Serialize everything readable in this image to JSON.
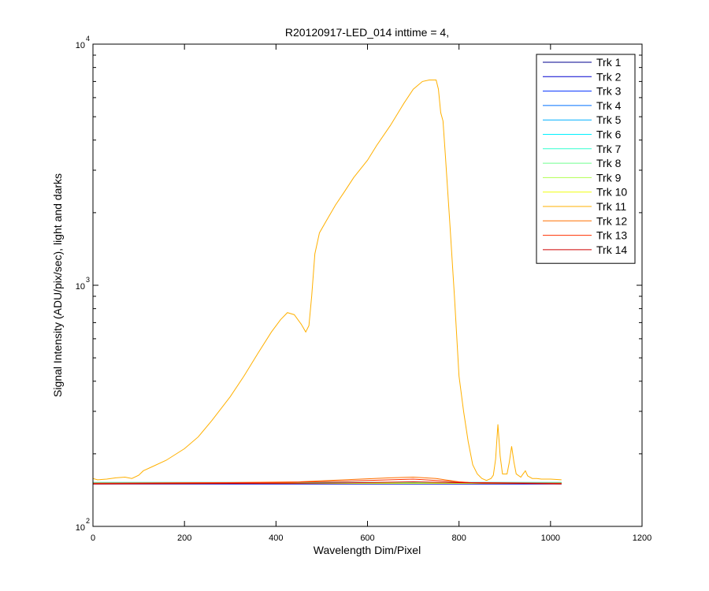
{
  "chart_data": {
    "type": "line",
    "title": "R20120917-LED_014 inttime = 4,",
    "xlabel": "Wavelength Dim/Pixel",
    "ylabel": "Signal Intensity (ADU/pix/sec), light and darks",
    "xlim": [
      0,
      1200
    ],
    "ylim": [
      100,
      10000
    ],
    "yscale": "log",
    "grid": false,
    "legend_position": "top-right",
    "x_ticks": [
      "0",
      "200",
      "400",
      "600",
      "800",
      "1000",
      "1200"
    ],
    "y_ticks": [
      {
        "value": 100,
        "base": "10",
        "exp": "2"
      },
      {
        "value": 1000,
        "base": "10",
        "exp": "3"
      },
      {
        "value": 10000,
        "base": "10",
        "exp": "4"
      }
    ],
    "series": [
      {
        "name": "Trk 1",
        "color": "#00008f",
        "points": [
          [
            0,
            150
          ],
          [
            1024,
            150
          ]
        ]
      },
      {
        "name": "Trk 2",
        "color": "#0000cf",
        "points": [
          [
            0,
            150
          ],
          [
            1024,
            150
          ]
        ]
      },
      {
        "name": "Trk 3",
        "color": "#0030ff",
        "points": [
          [
            0,
            151
          ],
          [
            1024,
            151
          ]
        ]
      },
      {
        "name": "Trk 4",
        "color": "#0070ff",
        "points": [
          [
            0,
            151
          ],
          [
            1024,
            151
          ]
        ]
      },
      {
        "name": "Trk 5",
        "color": "#00b0ff",
        "points": [
          [
            0,
            152
          ],
          [
            1024,
            152
          ]
        ]
      },
      {
        "name": "Trk 6",
        "color": "#00f0ff",
        "points": [
          [
            0,
            152
          ],
          [
            1024,
            152
          ]
        ]
      },
      {
        "name": "Trk 7",
        "color": "#30ffcf",
        "points": [
          [
            0,
            152
          ],
          [
            1024,
            152
          ]
        ]
      },
      {
        "name": "Trk 8",
        "color": "#70ff8f",
        "points": [
          [
            0,
            151
          ],
          [
            1024,
            151
          ]
        ]
      },
      {
        "name": "Trk 9",
        "color": "#b0ff4f",
        "points": [
          [
            0,
            151
          ],
          [
            1024,
            151
          ]
        ]
      },
      {
        "name": "Trk 10",
        "color": "#f0ff0f",
        "points": [
          [
            0,
            151
          ],
          [
            1024,
            151
          ]
        ]
      },
      {
        "name": "Trk 11",
        "color": "#ffb000",
        "points": [
          [
            0,
            158
          ],
          [
            10,
            156
          ],
          [
            30,
            157
          ],
          [
            50,
            159
          ],
          [
            70,
            160
          ],
          [
            85,
            158
          ],
          [
            100,
            163
          ],
          [
            110,
            170
          ],
          [
            130,
            177
          ],
          [
            160,
            188
          ],
          [
            200,
            210
          ],
          [
            230,
            235
          ],
          [
            260,
            275
          ],
          [
            300,
            345
          ],
          [
            330,
            420
          ],
          [
            360,
            520
          ],
          [
            390,
            640
          ],
          [
            410,
            720
          ],
          [
            425,
            770
          ],
          [
            440,
            755
          ],
          [
            455,
            690
          ],
          [
            465,
            640
          ],
          [
            472,
            680
          ],
          [
            478,
            900
          ],
          [
            485,
            1350
          ],
          [
            495,
            1650
          ],
          [
            510,
            1850
          ],
          [
            530,
            2150
          ],
          [
            550,
            2450
          ],
          [
            570,
            2800
          ],
          [
            600,
            3300
          ],
          [
            620,
            3800
          ],
          [
            650,
            4600
          ],
          [
            680,
            5700
          ],
          [
            700,
            6500
          ],
          [
            720,
            7000
          ],
          [
            735,
            7100
          ],
          [
            750,
            7100
          ],
          [
            755,
            6500
          ],
          [
            760,
            5200
          ],
          [
            765,
            4800
          ],
          [
            770,
            3500
          ],
          [
            780,
            1800
          ],
          [
            790,
            900
          ],
          [
            800,
            420
          ],
          [
            810,
            300
          ],
          [
            820,
            225
          ],
          [
            830,
            180
          ],
          [
            840,
            165
          ],
          [
            850,
            158
          ],
          [
            860,
            155
          ],
          [
            870,
            158
          ],
          [
            875,
            163
          ],
          [
            880,
            190
          ],
          [
            885,
            265
          ],
          [
            890,
            195
          ],
          [
            895,
            165
          ],
          [
            905,
            165
          ],
          [
            910,
            185
          ],
          [
            915,
            215
          ],
          [
            920,
            185
          ],
          [
            925,
            165
          ],
          [
            935,
            160
          ],
          [
            940,
            165
          ],
          [
            945,
            170
          ],
          [
            950,
            162
          ],
          [
            960,
            158
          ],
          [
            970,
            158
          ],
          [
            980,
            157
          ],
          [
            1000,
            157
          ],
          [
            1024,
            156
          ]
        ]
      },
      {
        "name": "Trk 12",
        "color": "#ff7000",
        "points": [
          [
            0,
            151
          ],
          [
            300,
            152
          ],
          [
            450,
            153
          ],
          [
            550,
            156
          ],
          [
            650,
            159
          ],
          [
            700,
            160
          ],
          [
            750,
            158
          ],
          [
            800,
            153
          ],
          [
            850,
            151
          ],
          [
            1024,
            151
          ]
        ]
      },
      {
        "name": "Trk 13",
        "color": "#ff3000",
        "points": [
          [
            0,
            151
          ],
          [
            400,
            152
          ],
          [
            550,
            154
          ],
          [
            650,
            156
          ],
          [
            700,
            157
          ],
          [
            750,
            155
          ],
          [
            820,
            152
          ],
          [
            1024,
            151
          ]
        ]
      },
      {
        "name": "Trk 14",
        "color": "#cf0000",
        "points": [
          [
            0,
            150
          ],
          [
            450,
            151
          ],
          [
            600,
            152
          ],
          [
            700,
            153
          ],
          [
            780,
            152
          ],
          [
            1024,
            150
          ]
        ]
      }
    ]
  }
}
